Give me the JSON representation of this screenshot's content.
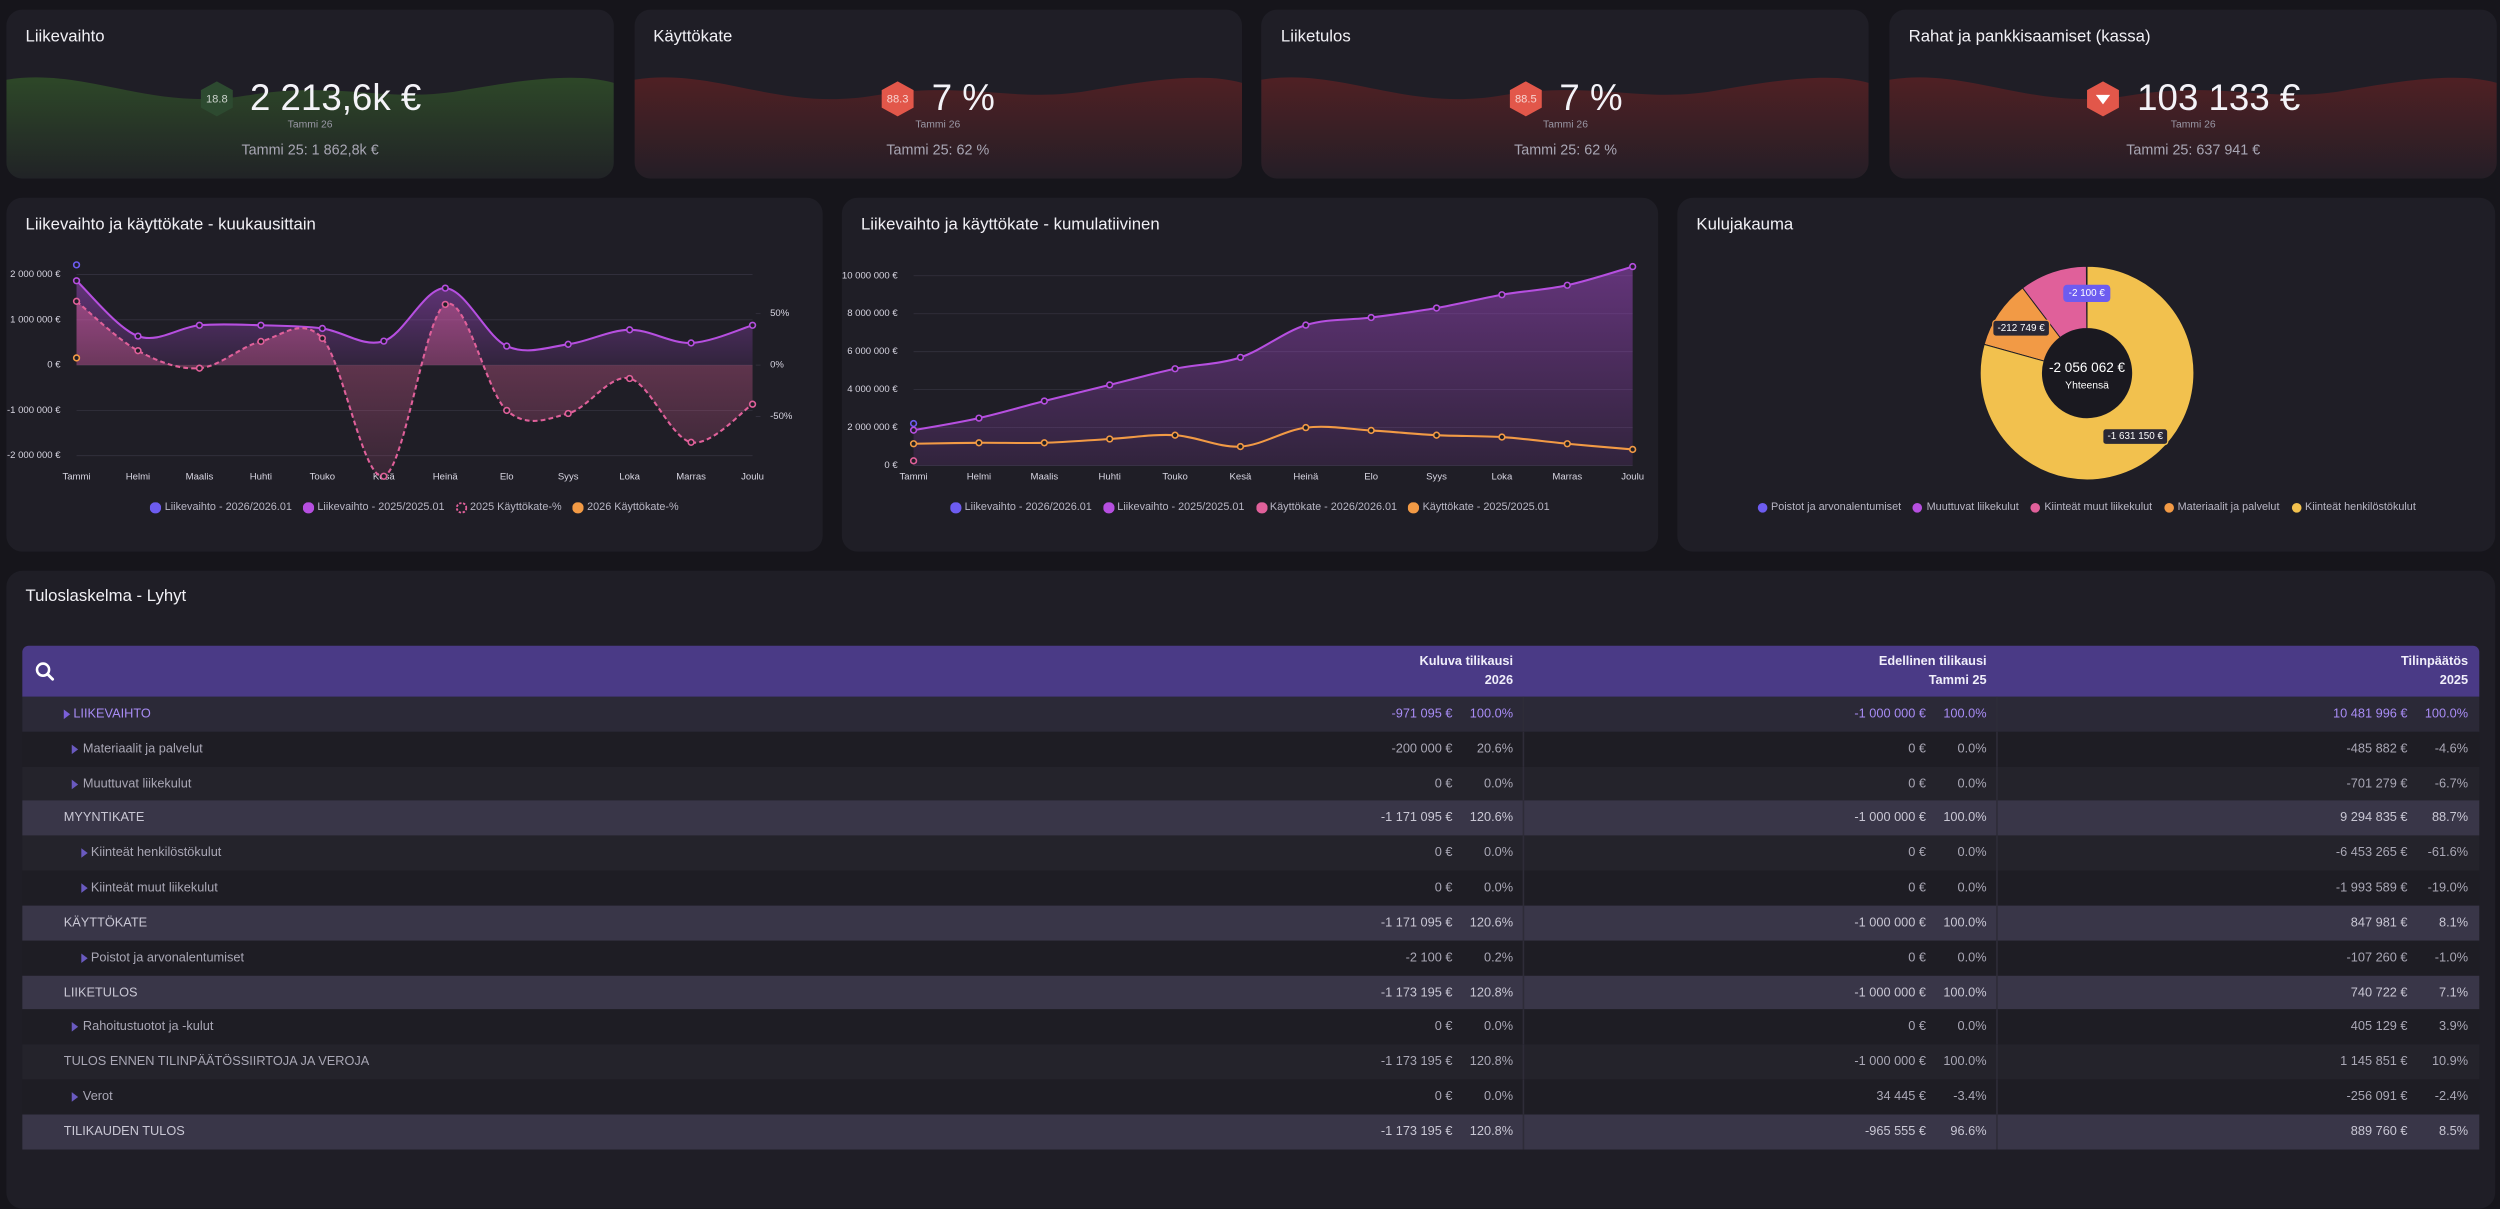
{
  "kpis": [
    {
      "title": "Liikevaihto",
      "badge": "18.8",
      "badge_color": "#2d4a30",
      "value": "2 213,6k €",
      "sub": "Tammi 26",
      "previous": "Tammi 25: 1 862,8k €",
      "wave_color": "#3f7a2a"
    },
    {
      "title": "Käyttökate",
      "badge": "88.3",
      "badge_color": "#e2574a",
      "value": "7 %",
      "sub": "Tammi 26",
      "previous": "Tammi 25: 62 %",
      "wave_color": "#8a2222"
    },
    {
      "title": "Liiketulos",
      "badge": "88.5",
      "badge_color": "#e2574a",
      "value": "7 %",
      "sub": "Tammi 26",
      "previous": "Tammi 25: 62 %",
      "wave_color": "#8a2222"
    },
    {
      "title": "Rahat ja pankkisaamiset (kassa)",
      "trend": "down",
      "badge_color": "#e2574a",
      "value": "103 133 €",
      "sub": "Tammi 26",
      "previous": "Tammi 25: 637 941 €",
      "wave_color": "#8a2222"
    }
  ],
  "chart_data": [
    {
      "type": "line",
      "title": "Liikevaihto ja käyttökate - kuukausittain",
      "categories": [
        "Tammi",
        "Helmi",
        "Maalis",
        "Huhti",
        "Touko",
        "Kesä",
        "Heinä",
        "Elo",
        "Syys",
        "Loka",
        "Marras",
        "Joulu"
      ],
      "ylim": [
        -2500000,
        2500000
      ],
      "yticks": [
        {
          "value": 2000000,
          "label": "2 000 000 €"
        },
        {
          "value": 1000000,
          "label": "1 000 000 €"
        },
        {
          "value": 0,
          "label": "0 €"
        },
        {
          "value": -1000000,
          "label": "-1 000 000 €"
        },
        {
          "value": -2000000,
          "label": "-2 000 000 €"
        }
      ],
      "y2lim": [
        -110,
        110
      ],
      "y2ticks": [
        {
          "value": 50,
          "label": "50%"
        },
        {
          "value": 0,
          "label": "0%"
        },
        {
          "value": -50,
          "label": "-50%"
        }
      ],
      "grid": true,
      "series": [
        {
          "name": "Liikevaihto - 2026/2026.01",
          "color": "#6d5cf0",
          "values": [
            2213600,
            null,
            null,
            null,
            null,
            null,
            null,
            null,
            null,
            null,
            null,
            null
          ]
        },
        {
          "name": "Liikevaihto - 2025/2025.01",
          "color": "#b64fe0",
          "area": true,
          "values": [
            1862800,
            640000,
            880000,
            880000,
            810000,
            530000,
            1700000,
            420000,
            460000,
            780000,
            490000,
            880000
          ]
        },
        {
          "name": "2025 Käyttökate-%",
          "color": "#e0609a",
          "axis": "y2",
          "dash": true,
          "area": true,
          "values": [
            62,
            14,
            -3,
            23,
            26,
            -108,
            59,
            -44,
            -47,
            -13,
            -75,
            -38
          ]
        },
        {
          "name": "2026 Käyttökate-%",
          "color": "#f29a45",
          "axis": "y2",
          "values": [
            7,
            null,
            null,
            null,
            null,
            null,
            null,
            null,
            null,
            null,
            null,
            null
          ]
        }
      ]
    },
    {
      "type": "line",
      "title": "Liikevaihto ja käyttökate - kumulatiivinen",
      "categories": [
        "Tammi",
        "Helmi",
        "Maalis",
        "Huhti",
        "Touko",
        "Kesä",
        "Heinä",
        "Elo",
        "Syys",
        "Loka",
        "Marras",
        "Joulu"
      ],
      "ylim": [
        0,
        10500000
      ],
      "yticks": [
        {
          "value": 10000000,
          "label": "10 000 000 €"
        },
        {
          "value": 8000000,
          "label": "8 000 000 €"
        },
        {
          "value": 6000000,
          "label": "6 000 000 €"
        },
        {
          "value": 4000000,
          "label": "4 000 000 €"
        },
        {
          "value": 2000000,
          "label": "2 000 000 €"
        },
        {
          "value": 0,
          "label": "0 €"
        }
      ],
      "grid": true,
      "series": [
        {
          "name": "Liikevaihto - 2026/2026.01",
          "color": "#6d5cf0",
          "values": [
            2213600,
            null,
            null,
            null,
            null,
            null,
            null,
            null,
            null,
            null,
            null,
            null
          ]
        },
        {
          "name": "Liikevaihto - 2025/2025.01",
          "color": "#b64fe0",
          "area": true,
          "values": [
            1862800,
            2500000,
            3400000,
            4250000,
            5100000,
            5700000,
            7400000,
            7800000,
            8300000,
            9000000,
            9500000,
            10481996
          ]
        },
        {
          "name": "Käyttökate - 2026/2026.01",
          "color": "#e0609a",
          "values": [
            250000,
            null,
            null,
            null,
            null,
            null,
            null,
            null,
            null,
            null,
            null,
            null
          ]
        },
        {
          "name": "Käyttökate - 2025/2025.01",
          "color": "#f29a45",
          "values": [
            1150000,
            1200000,
            1200000,
            1400000,
            1600000,
            1000000,
            2000000,
            1850000,
            1600000,
            1500000,
            1150000,
            847981
          ]
        }
      ]
    },
    {
      "type": "pie",
      "donut": true,
      "title": "Kulujakauma",
      "categories": [
        "Poistot ja arvonalentumiset",
        "Muuttuvat liikekulut",
        "Kiinteät muut liikekulut",
        "Materiaalit ja palvelut",
        "Kiinteät henkilöstökulut"
      ],
      "colors": [
        "#6d5cf0",
        "#b64fe0",
        "#e0609a",
        "#f29a45",
        "#f2c14e"
      ],
      "values": [
        -2100,
        0,
        -210063,
        -212749,
        -1631150
      ],
      "value_labels": [
        "-2 100 €",
        null,
        null,
        "-212 749 €",
        "-1 631 150 €"
      ],
      "total_label": "-2 056 062 €",
      "total_sublabel": "Yhteensä"
    }
  ],
  "table": {
    "title": "Tuloslaskelma - Lyhyt",
    "columns": [
      {
        "name": "Kuluva tilikausi",
        "sub": "2026"
      },
      {
        "name": "Edellinen tilikausi",
        "sub": "Tammi 25"
      },
      {
        "name": "Tilinpäätös",
        "sub": "2025"
      }
    ],
    "rows": [
      {
        "label": "LIIKEVAIHTO",
        "style": "group",
        "cells": [
          "-971 095 €",
          "100.0%",
          "-1 000 000 €",
          "100.0%",
          "10 481 996 €",
          "100.0%"
        ]
      },
      {
        "label": "Materiaalit ja palvelut",
        "style": "item",
        "cells": [
          "-200 000 €",
          "20.6%",
          "0 €",
          "0.0%",
          "-485 882 €",
          "-4.6%"
        ]
      },
      {
        "label": "Muuttuvat liikekulut",
        "style": "item",
        "cells": [
          "0 €",
          "0.0%",
          "0 €",
          "0.0%",
          "-701 279 €",
          "-6.7%"
        ]
      },
      {
        "label": "MYYNTIKATE",
        "style": "total",
        "cells": [
          "-1 171 095 €",
          "120.6%",
          "-1 000 000 €",
          "100.0%",
          "9 294 835 €",
          "88.7%"
        ]
      },
      {
        "label": "Kiinteät henkilöstökulut",
        "style": "subitem",
        "cells": [
          "0 €",
          "0.0%",
          "0 €",
          "0.0%",
          "-6 453 265 €",
          "-61.6%"
        ]
      },
      {
        "label": "Kiinteät muut liikekulut",
        "style": "subitem",
        "cells": [
          "0 €",
          "0.0%",
          "0 €",
          "0.0%",
          "-1 993 589 €",
          "-19.0%"
        ]
      },
      {
        "label": "KÄYTTÖKATE",
        "style": "total",
        "cells": [
          "-1 171 095 €",
          "120.6%",
          "-1 000 000 €",
          "100.0%",
          "847 981 €",
          "8.1%"
        ]
      },
      {
        "label": "Poistot ja arvonalentumiset",
        "style": "subitem",
        "cells": [
          "-2 100 €",
          "0.2%",
          "0 €",
          "0.0%",
          "-107 260 €",
          "-1.0%"
        ]
      },
      {
        "label": "LIIKETULOS",
        "style": "total",
        "cells": [
          "-1 173 195 €",
          "120.8%",
          "-1 000 000 €",
          "100.0%",
          "740 722 €",
          "7.1%"
        ]
      },
      {
        "label": "Rahoitustuotot ja -kulut",
        "style": "item",
        "cells": [
          "0 €",
          "0.0%",
          "0 €",
          "0.0%",
          "405 129 €",
          "3.9%"
        ]
      },
      {
        "label": "TULOS ENNEN TILINPÄÄTÖSSIIRTOJA JA VEROJA",
        "style": "plain",
        "cells": [
          "-1 173 195 €",
          "120.8%",
          "-1 000 000 €",
          "100.0%",
          "1 145 851 €",
          "10.9%"
        ]
      },
      {
        "label": "Verot",
        "style": "item",
        "cells": [
          "0 €",
          "0.0%",
          "34 445 €",
          "-3.4%",
          "-256 091 €",
          "-2.4%"
        ]
      },
      {
        "label": "TILIKAUDEN TULOS",
        "style": "total",
        "cells": [
          "-1 173 195 €",
          "120.8%",
          "-965 555 €",
          "96.6%",
          "889 760 €",
          "8.5%"
        ]
      }
    ]
  }
}
